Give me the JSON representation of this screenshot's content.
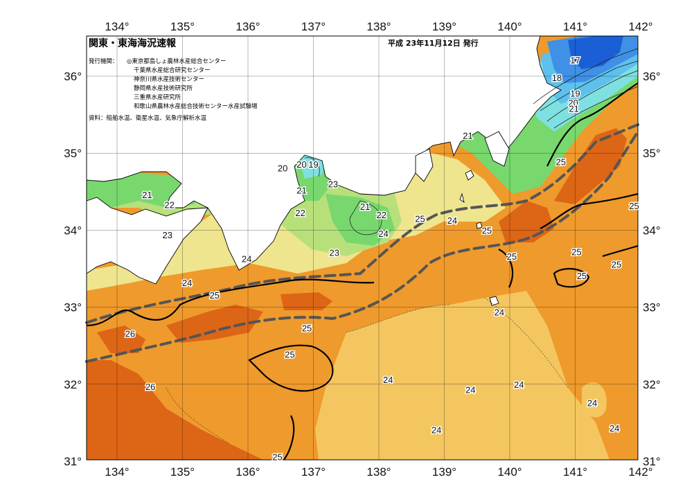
{
  "header": {
    "title": "関東・東海海況速報",
    "date": "平成 23年11月12日 発行",
    "issuers_label": "発行機関：",
    "issuers": [
      "◎東京都島しょ農林水産総合センター",
      "千葉県水産総合研究センター",
      "神奈川県水産技術センター",
      "静岡県水産技術研究所",
      "三重県水産研究所",
      "和歌山県農林水産総合技術センター水産試験場"
    ],
    "source": "資料：船舶水温、衛星水温、気象庁解析水温"
  },
  "axes": {
    "lon_ticks": [
      "134°",
      "135°",
      "136°",
      "137°",
      "138°",
      "139°",
      "140°",
      "141°",
      "142°"
    ],
    "lat_ticks": [
      "36°",
      "35°",
      "34°",
      "33°",
      "32°",
      "31°"
    ]
  },
  "temperature_labels": [
    {
      "text": "17",
      "lon": 141.0,
      "lat": 36.21
    },
    {
      "text": "18",
      "lon": 140.72,
      "lat": 35.98
    },
    {
      "text": "19",
      "lon": 141.0,
      "lat": 35.78
    },
    {
      "text": "20",
      "lon": 140.97,
      "lat": 35.66
    },
    {
      "text": "21",
      "lon": 140.98,
      "lat": 35.58
    },
    {
      "text": "21",
      "lon": 139.36,
      "lat": 35.23
    },
    {
      "text": "25",
      "lon": 140.78,
      "lat": 34.89
    },
    {
      "text": "25",
      "lon": 141.9,
      "lat": 34.32
    },
    {
      "text": "20",
      "lon": 136.82,
      "lat": 34.86
    },
    {
      "text": "19",
      "lon": 137.0,
      "lat": 34.86
    },
    {
      "text": "20",
      "lon": 136.53,
      "lat": 34.81
    },
    {
      "text": "21",
      "lon": 136.82,
      "lat": 34.52
    },
    {
      "text": "23",
      "lon": 137.3,
      "lat": 34.6
    },
    {
      "text": "21",
      "lon": 134.46,
      "lat": 34.46
    },
    {
      "text": "22",
      "lon": 134.8,
      "lat": 34.33
    },
    {
      "text": "22",
      "lon": 136.8,
      "lat": 34.23
    },
    {
      "text": "21",
      "lon": 137.79,
      "lat": 34.31
    },
    {
      "text": "22",
      "lon": 138.04,
      "lat": 34.2
    },
    {
      "text": "25",
      "lon": 138.63,
      "lat": 34.15
    },
    {
      "text": "24",
      "lon": 139.12,
      "lat": 34.13
    },
    {
      "text": "25",
      "lon": 139.65,
      "lat": 34.0
    },
    {
      "text": "24",
      "lon": 138.07,
      "lat": 33.96
    },
    {
      "text": "23",
      "lon": 134.77,
      "lat": 33.94
    },
    {
      "text": "23",
      "lon": 137.32,
      "lat": 33.71
    },
    {
      "text": "24",
      "lon": 135.98,
      "lat": 33.63
    },
    {
      "text": "25",
      "lon": 140.03,
      "lat": 33.66
    },
    {
      "text": "25",
      "lon": 141.02,
      "lat": 33.72
    },
    {
      "text": "25",
      "lon": 141.63,
      "lat": 33.56
    },
    {
      "text": "25",
      "lon": 141.1,
      "lat": 33.41
    },
    {
      "text": "24",
      "lon": 135.07,
      "lat": 33.32
    },
    {
      "text": "25",
      "lon": 135.49,
      "lat": 33.16
    },
    {
      "text": "24",
      "lon": 139.84,
      "lat": 32.94
    },
    {
      "text": "25",
      "lon": 136.9,
      "lat": 32.73
    },
    {
      "text": "26",
      "lon": 134.2,
      "lat": 32.66
    },
    {
      "text": "25",
      "lon": 136.64,
      "lat": 32.39
    },
    {
      "text": "24",
      "lon": 138.14,
      "lat": 32.06
    },
    {
      "text": "24",
      "lon": 140.14,
      "lat": 32.0
    },
    {
      "text": "24",
      "lon": 139.4,
      "lat": 31.93
    },
    {
      "text": "26",
      "lon": 134.51,
      "lat": 31.97
    },
    {
      "text": "24",
      "lon": 141.26,
      "lat": 31.76
    },
    {
      "text": "24",
      "lon": 138.88,
      "lat": 31.41
    },
    {
      "text": "24",
      "lon": 141.6,
      "lat": 31.43
    },
    {
      "text": "25",
      "lon": 136.45,
      "lat": 31.06
    }
  ],
  "colors": {
    "t17": "#1a5fd6",
    "t18": "#3f90e6",
    "t19": "#5ec0ec",
    "t20": "#7fe0e2",
    "t21": "#78d86e",
    "t22": "#b8e07a",
    "t23": "#eee58e",
    "t24": "#f4c660",
    "t25": "#ef9a2c",
    "t26": "#dd6516",
    "land": "#ffffff",
    "kuroshio": "#555555"
  }
}
